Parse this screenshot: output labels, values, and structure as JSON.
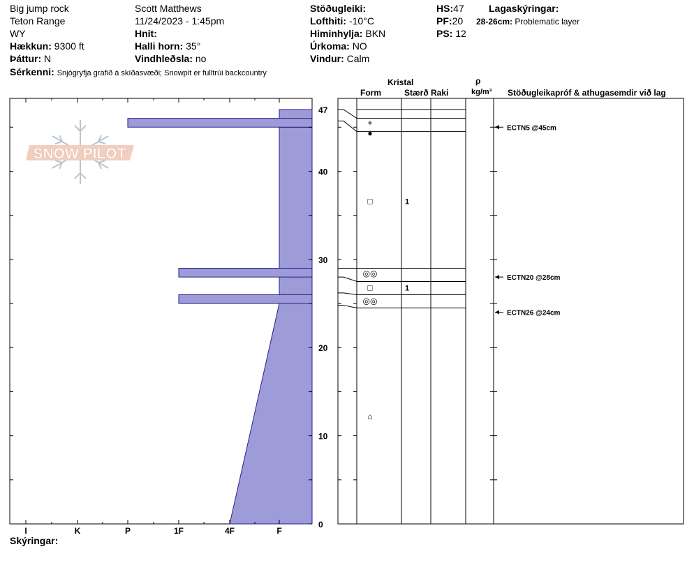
{
  "header": {
    "site": "Big jump rock",
    "range": "Teton Range",
    "state": "WY",
    "elevation_label": "Hækkun:",
    "elevation_value": "9300 ft",
    "aspect_label": "Þáttur:",
    "aspect_value": "N",
    "observer": "Scott Matthews",
    "datetime": "11/24/2023 - 1:45pm",
    "coords_label": "Hnit:",
    "slope_label": "Halli horn:",
    "slope_value": "35°",
    "wind_loading_label": "Vindhleðsla:",
    "wind_loading_value": "no",
    "stability_label": "Stöðugleiki:",
    "air_temp_label": "Lofthiti:",
    "air_temp_value": "-10°C",
    "sky_label": "Himinhylja:",
    "sky_value": "BKN",
    "precip_label": "Úrkoma:",
    "precip_value": "NO",
    "wind_label": "Vindur:",
    "wind_value": "Calm",
    "hs_label": "HS:",
    "hs_value": "47",
    "pf_label": "PF:",
    "pf_value": "20",
    "ps_label": "PS:",
    "ps_value": "12",
    "layer_notes_label": "Lagaskýringar:",
    "layer_note_depth": "28-26cm:",
    "layer_note_text": "Problematic layer",
    "specifics_label": "Sérkenni:",
    "specifics_value": "Snjógryfja grafið á skíðasvæði;  Snowpit er fulltrúi backcountry"
  },
  "logo": {
    "text": "SNOW PILOT"
  },
  "table_headers": {
    "crystal": "Kristal",
    "form": "Form",
    "size": "Stærð",
    "moisture": "Raki",
    "rho": "ρ",
    "density_unit": "kg/m³",
    "tests": "Stöðugleikapróf & athugasemdir við lag"
  },
  "footer": {
    "notes_label": "Skýringar:"
  },
  "colors": {
    "hardness_fill": "#9e9bd9",
    "hardness_stroke": "#2a1f8c",
    "line": "#000000"
  },
  "chart_data": {
    "type": "bar",
    "ylim": [
      0,
      47
    ],
    "hardness_scale": [
      "I",
      "K",
      "P",
      "1F",
      "4F",
      "F"
    ],
    "depth_ticks": [
      0,
      10,
      20,
      30,
      40,
      47
    ],
    "hardness_profile": [
      {
        "top": 47,
        "bottom": 46,
        "hardness": "F"
      },
      {
        "top": 46,
        "bottom": 45,
        "hardness": "P"
      },
      {
        "top": 45,
        "bottom": 29,
        "hardness": "F"
      },
      {
        "top": 29,
        "bottom": 28,
        "hardness": "1F"
      },
      {
        "top": 28,
        "bottom": 26,
        "hardness": "F"
      },
      {
        "top": 26,
        "bottom": 25,
        "hardness": "1F"
      },
      {
        "top": 25,
        "bottom": 0,
        "hardness": "F to 4F (gradient)"
      }
    ],
    "layer_boundaries": [
      47,
      46,
      44.5,
      29,
      27.5,
      26,
      24.5
    ],
    "grain_forms": [
      {
        "depth": 45.5,
        "symbol": "+",
        "size": ""
      },
      {
        "depth": 44.3,
        "symbol": "●",
        "size": ""
      },
      {
        "depth": 36.6,
        "symbol": "□",
        "size": "1"
      },
      {
        "depth": 28.4,
        "symbol": "◎◎",
        "size": ""
      },
      {
        "depth": 26.8,
        "symbol": "□",
        "size": "1"
      },
      {
        "depth": 25.3,
        "symbol": "◎◎",
        "size": ""
      },
      {
        "depth": 12.2,
        "symbol": "⌂",
        "size": ""
      }
    ],
    "stability_tests": [
      {
        "depth": 45,
        "label": "ECTN5 @45cm"
      },
      {
        "depth": 28,
        "label": "ECTN20 @28cm"
      },
      {
        "depth": 24,
        "label": "ECTN26 @24cm"
      }
    ]
  }
}
